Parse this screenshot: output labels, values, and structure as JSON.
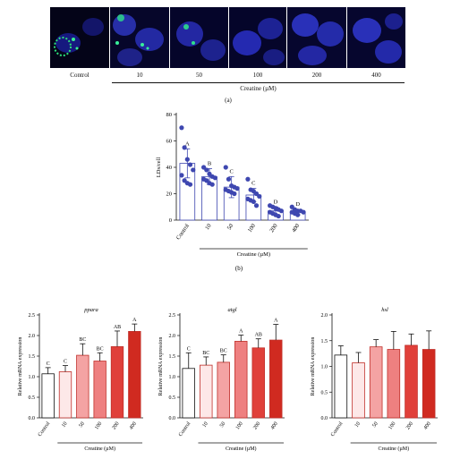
{
  "panel_a": {
    "label": "(a)",
    "tiles": [
      {
        "label": "Control"
      },
      {
        "label": "10"
      },
      {
        "label": "50"
      },
      {
        "label": "100"
      },
      {
        "label": "200"
      },
      {
        "label": "400"
      }
    ],
    "axis_caption": "Creatine (µM)",
    "colors": {
      "nucleus": "#2a2fd0",
      "lipid": "#22e07a",
      "background": "#050520"
    }
  },
  "chart_data": [
    {
      "id": "b",
      "type": "bar",
      "panel_label": "(b)",
      "title": "",
      "xlabel": "Creatine (µM)",
      "ylabel": "LDs/cell",
      "categories": [
        "Control",
        "10",
        "50",
        "100",
        "200",
        "400"
      ],
      "values": [
        43,
        33,
        25,
        19,
        7,
        6
      ],
      "errors": [
        11,
        6,
        8,
        5,
        3,
        2
      ],
      "letters": [
        "A",
        "B",
        "C",
        "C",
        "D",
        "D"
      ],
      "points": [
        [
          70,
          55,
          46,
          42,
          38,
          34,
          30,
          28,
          27
        ],
        [
          40,
          38,
          35,
          33,
          32,
          31,
          30,
          28,
          27
        ],
        [
          40,
          31,
          26,
          25,
          24,
          23,
          22,
          21,
          20
        ],
        [
          31,
          23,
          22,
          20,
          18,
          16,
          15,
          14,
          11
        ],
        [
          11,
          10,
          9,
          8,
          7,
          6,
          5,
          4,
          3
        ],
        [
          10,
          8,
          7,
          7,
          6,
          6,
          5,
          4
        ]
      ],
      "ylim": [
        0,
        80
      ],
      "yticks": [
        0,
        20,
        40,
        60,
        80
      ],
      "color": "#3e47b0",
      "grid": false
    },
    {
      "id": "ppara",
      "type": "bar",
      "title": "ppara",
      "xlabel": "Creatine (µM)",
      "ylabel": "Relative mRNA expression",
      "categories": [
        "Control",
        "10",
        "50",
        "100",
        "200",
        "400"
      ],
      "values": [
        1.07,
        1.12,
        1.52,
        1.38,
        1.73,
        2.1
      ],
      "errors": [
        0.15,
        0.15,
        0.28,
        0.2,
        0.38,
        0.18
      ],
      "letters": [
        "C",
        "C",
        "BC",
        "BC",
        "AB",
        "A"
      ],
      "ylim": [
        0,
        2.5
      ],
      "yticks": [
        0.0,
        0.5,
        1.0,
        1.5,
        2.0,
        2.5
      ],
      "colors": [
        "#ffffff",
        "#fde8e8",
        "#f4a3a3",
        "#ee8080",
        "#e0403a",
        "#d02a20"
      ],
      "grid": false
    },
    {
      "id": "atgl",
      "type": "bar",
      "title": "atgl",
      "xlabel": "Creatine (µM)",
      "ylabel": "Relative mRNA expression",
      "categories": [
        "Control",
        "10",
        "50",
        "100",
        "200",
        "400"
      ],
      "values": [
        1.2,
        1.28,
        1.35,
        1.86,
        1.7,
        1.89
      ],
      "errors": [
        0.38,
        0.2,
        0.18,
        0.15,
        0.22,
        0.38
      ],
      "letters": [
        "C",
        "BC",
        "BC",
        "A",
        "AB",
        "A"
      ],
      "ylim": [
        0,
        2.5
      ],
      "yticks": [
        0.0,
        0.5,
        1.0,
        1.5,
        2.0,
        2.5
      ],
      "colors": [
        "#ffffff",
        "#fde8e8",
        "#f4a3a3",
        "#ee8080",
        "#e0403a",
        "#d02a20"
      ],
      "grid": false
    },
    {
      "id": "hsl",
      "type": "bar",
      "title": "hsl",
      "xlabel": "Creatine (µM)",
      "ylabel": "Relative mRNA expression",
      "categories": [
        "Control",
        "10",
        "50",
        "100",
        "200",
        "400"
      ],
      "values": [
        1.22,
        1.07,
        1.38,
        1.33,
        1.41,
        1.33
      ],
      "errors": [
        0.18,
        0.2,
        0.14,
        0.35,
        0.22,
        0.36
      ],
      "letters": [],
      "ylim": [
        0,
        2.0
      ],
      "yticks": [
        0.0,
        0.5,
        1.0,
        1.5,
        2.0
      ],
      "colors": [
        "#ffffff",
        "#fde8e8",
        "#f4a3a3",
        "#ee8080",
        "#e0403a",
        "#d02a20"
      ],
      "grid": false
    }
  ]
}
